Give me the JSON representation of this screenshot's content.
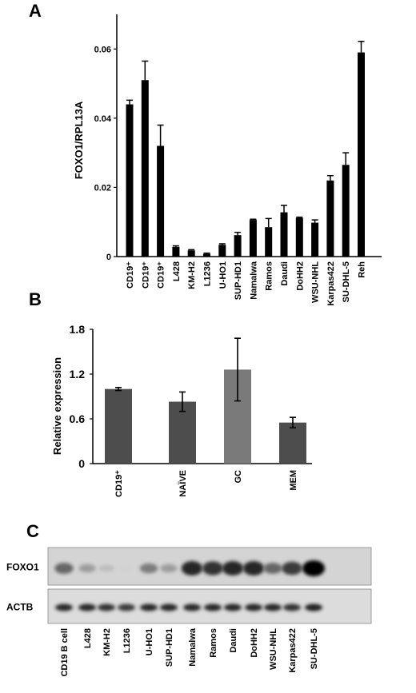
{
  "chart_data": [
    {
      "panel": "A",
      "type": "bar",
      "ylabel": "FOXO1/RPL13A",
      "ylim": [
        0,
        0.07
      ],
      "yticks": [
        0,
        0.02,
        0.04,
        0.06
      ],
      "ytick_labels": [
        "0",
        "0.02",
        "0.04",
        "0.06"
      ],
      "categories": [
        "CD19⁺",
        "CD19⁺",
        "CD19⁺",
        "L428",
        "KM-H2",
        "L1236",
        "U-HO1",
        "SUP-HD1",
        "Namalwa",
        "Ramos",
        "Daudi",
        "DoHH2",
        "WSU-NHL",
        "Karpas422",
        "SU-DHL-5",
        "Reh"
      ],
      "values": [
        0.044,
        0.051,
        0.032,
        0.0028,
        0.0018,
        0.0008,
        0.0034,
        0.0062,
        0.0106,
        0.0085,
        0.0128,
        0.0112,
        0.0098,
        0.022,
        0.0265,
        0.059
      ],
      "errors": [
        0.0012,
        0.0055,
        0.006,
        0.0003,
        0.0002,
        0.0002,
        0.0003,
        0.0008,
        0.0002,
        0.0025,
        0.002,
        0.0002,
        0.0008,
        0.0014,
        0.0035,
        0.0032
      ],
      "color": "#000000"
    },
    {
      "panel": "B",
      "type": "bar",
      "ylabel": "Relative expression",
      "ylim": [
        0,
        1.8
      ],
      "yticks": [
        0,
        0.6,
        1.2,
        1.8
      ],
      "ytick_labels": [
        "0",
        "0.6",
        "1.2",
        "1.8"
      ],
      "categories": [
        "CD19⁺",
        "NAÏVE",
        "GC",
        "MEM"
      ],
      "values": [
        1.0,
        0.83,
        1.26,
        0.55
      ],
      "errors": [
        0.02,
        0.13,
        0.42,
        0.07
      ],
      "colors": [
        "#4d4d4d",
        "#4d4d4d",
        "#7a7a7a",
        "#4d4d4d"
      ]
    },
    {
      "panel": "C",
      "type": "table",
      "rows": [
        "FOXO1",
        "ACTB"
      ],
      "lanes": [
        "CD19 B cell",
        "L428",
        "KM-H2",
        "L1236",
        "U-HO1",
        "SUP-HD1",
        "Namalwa",
        "Ramos",
        "Daudi",
        "DoHH2",
        "WSU-NHL",
        "Karpas422",
        "SU-DHL-5"
      ],
      "foxo1_intensity": [
        0.55,
        0.3,
        0.15,
        0.05,
        0.45,
        0.3,
        0.85,
        0.8,
        0.85,
        0.85,
        0.55,
        0.75,
        1.0
      ],
      "actb_intensity": [
        0.85,
        0.85,
        0.8,
        0.75,
        0.85,
        0.85,
        0.85,
        0.85,
        0.85,
        0.85,
        0.85,
        0.8,
        0.9
      ]
    }
  ],
  "panel_labels": [
    "A",
    "B",
    "C"
  ]
}
